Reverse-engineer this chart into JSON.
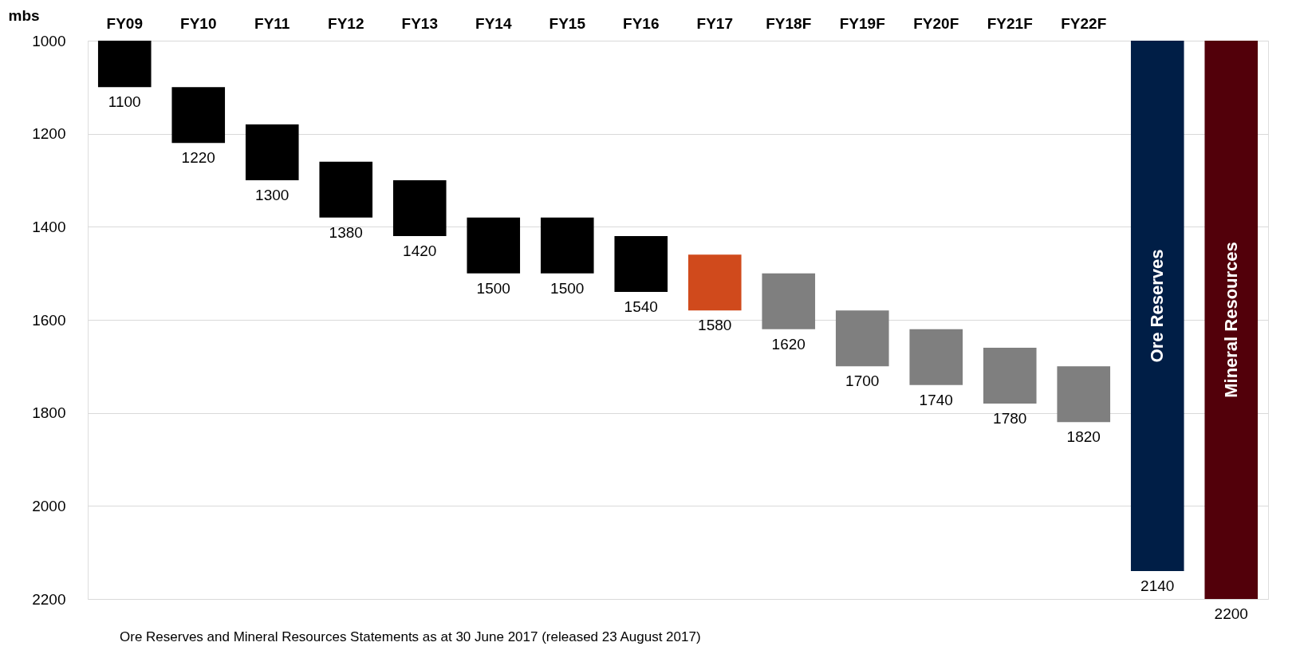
{
  "chart_data": {
    "type": "bar",
    "ylabel": "mbs",
    "categories": [
      "FY09",
      "FY10",
      "FY11",
      "FY12",
      "FY13",
      "FY14",
      "FY15",
      "FY16",
      "FY17",
      "FY18F",
      "FY19F",
      "FY20F",
      "FY21F",
      "FY22F",
      "Ore Reserves",
      "Mineral Resources"
    ],
    "base": [
      1000,
      1100,
      1180,
      1260,
      1300,
      1380,
      1380,
      1420,
      1460,
      1500,
      1580,
      1620,
      1660,
      1700,
      1000,
      1000
    ],
    "values": [
      100,
      120,
      120,
      120,
      120,
      120,
      120,
      120,
      120,
      120,
      120,
      120,
      120,
      120,
      1140,
      1200
    ],
    "colors": [
      "#000000",
      "#000000",
      "#000000",
      "#000000",
      "#000000",
      "#000000",
      "#000000",
      "#000000",
      "#d04a1c",
      "#7f7f7f",
      "#7f7f7f",
      "#7f7f7f",
      "#7f7f7f",
      "#7f7f7f",
      "#001e46",
      "#52000a"
    ],
    "value_labels": [
      "1100",
      "1220",
      "1300",
      "1380",
      "1420",
      "1500",
      "1500",
      "1540",
      "1580",
      "1620",
      "1700",
      "1740",
      "1780",
      "1820",
      "2140",
      "2200"
    ],
    "ylim": [
      2200,
      1000
    ],
    "yticks": [
      1000,
      1200,
      1400,
      1600,
      1800,
      2000,
      2200
    ],
    "grid": "y",
    "annotations": [
      "Ore Reserves and Mineral Resources Statements as at 30 June 2017 (released 23 August 2017)"
    ]
  }
}
